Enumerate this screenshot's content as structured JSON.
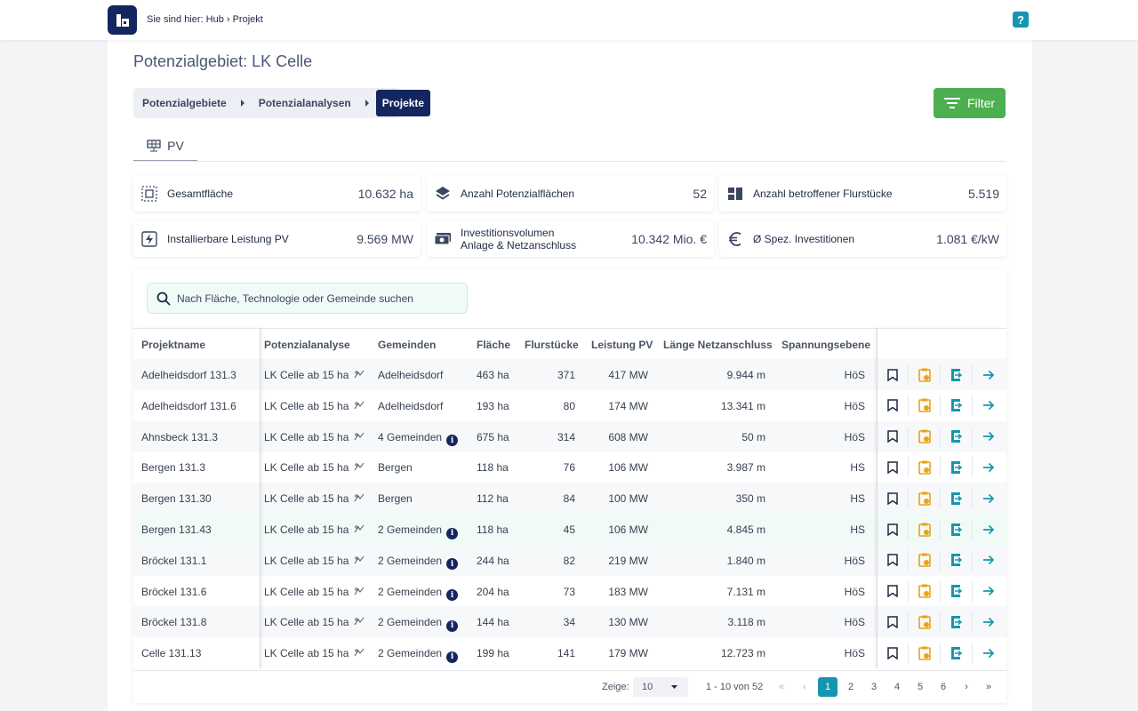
{
  "topbar": {
    "breadcrumb": "Sie sind hier: Hub › Projekt",
    "help": "?"
  },
  "page": {
    "title": "Potenzialgebiet:  LK Celle"
  },
  "breadcrumb": [
    "Potenzialgebiete",
    "Potenzialanalysen",
    "Projekte"
  ],
  "filter_label": "Filter",
  "tab": "PV",
  "stats": [
    {
      "label": "Gesamtfläche",
      "value": "10.632 ha",
      "icon": "area-select-icon"
    },
    {
      "label": "Anzahl Potenzialflächen",
      "value": "52",
      "icon": "layers-icon"
    },
    {
      "label": "Anzahl betroffener Flurstücke",
      "value": "5.519",
      "icon": "grid-blocks-icon"
    },
    {
      "label": "Installierbare Leistung PV",
      "value": "9.569 MW",
      "icon": "lightning-icon"
    },
    {
      "label": "Investitionsvolumen\nAnlage & Netzanschluss",
      "value": "10.342 Mio. €",
      "icon": "money-icon"
    },
    {
      "label": "Ø Spez. Investitionen",
      "value": "1.081 €/kW",
      "icon": "euro-icon"
    }
  ],
  "search": {
    "placeholder": "Nach Fläche, Technologie oder Gemeinde suchen"
  },
  "columns": [
    "Projektname",
    "Potenzialanalyse",
    "Gemeinden",
    "Fläche",
    "Flurstücke",
    "Leistung PV",
    "Länge Netzanschluss",
    "Spannungsebene"
  ],
  "rows": [
    {
      "name": "Adelheidsdorf 131.3",
      "analyse": "LK Celle ab 15 ha",
      "gemeinden": "Adelheidsdorf",
      "info": false,
      "flaeche": "463 ha",
      "flur": "371",
      "leistung": "417 MW",
      "laenge": "9.944 m",
      "spannung": "HöS"
    },
    {
      "name": "Adelheidsdorf 131.6",
      "analyse": "LK Celle ab 15 ha",
      "gemeinden": "Adelheidsdorf",
      "info": false,
      "flaeche": "193 ha",
      "flur": "80",
      "leistung": "174 MW",
      "laenge": "13.341 m",
      "spannung": "HöS"
    },
    {
      "name": "Ahnsbeck 131.3",
      "analyse": "LK Celle ab 15 ha",
      "gemeinden": "4 Gemeinden",
      "info": true,
      "flaeche": "675 ha",
      "flur": "314",
      "leistung": "608 MW",
      "laenge": "50 m",
      "spannung": "HöS"
    },
    {
      "name": "Bergen 131.3",
      "analyse": "LK Celle ab 15 ha",
      "gemeinden": "Bergen",
      "info": false,
      "flaeche": "118 ha",
      "flur": "76",
      "leistung": "106 MW",
      "laenge": "3.987 m",
      "spannung": "HS"
    },
    {
      "name": "Bergen 131.30",
      "analyse": "LK Celle ab 15 ha",
      "gemeinden": "Bergen",
      "info": false,
      "flaeche": "112 ha",
      "flur": "84",
      "leistung": "100 MW",
      "laenge": "350 m",
      "spannung": "HS"
    },
    {
      "name": "Bergen 131.43",
      "analyse": "LK Celle ab 15 ha",
      "gemeinden": "2 Gemeinden",
      "info": true,
      "flaeche": "118 ha",
      "flur": "45",
      "leistung": "106 MW",
      "laenge": "4.845 m",
      "spannung": "HS"
    },
    {
      "name": "Bröckel 131.1",
      "analyse": "LK Celle ab 15 ha",
      "gemeinden": "2 Gemeinden",
      "info": true,
      "flaeche": "244 ha",
      "flur": "82",
      "leistung": "219 MW",
      "laenge": "1.840 m",
      "spannung": "HöS"
    },
    {
      "name": "Bröckel 131.6",
      "analyse": "LK Celle ab 15 ha",
      "gemeinden": "2 Gemeinden",
      "info": true,
      "flaeche": "204 ha",
      "flur": "73",
      "leistung": "183 MW",
      "laenge": "7.131 m",
      "spannung": "HöS"
    },
    {
      "name": "Bröckel 131.8",
      "analyse": "LK Celle ab 15 ha",
      "gemeinden": "2 Gemeinden",
      "info": true,
      "flaeche": "144 ha",
      "flur": "34",
      "leistung": "130 MW",
      "laenge": "3.118 m",
      "spannung": "HöS"
    },
    {
      "name": "Celle 131.13",
      "analyse": "LK Celle ab 15 ha",
      "gemeinden": "2 Gemeinden",
      "info": true,
      "flaeche": "199 ha",
      "flur": "141",
      "leistung": "179 MW",
      "laenge": "12.723 m",
      "spannung": "HöS"
    }
  ],
  "pager": {
    "label": "Zeige:",
    "per_page": "10",
    "range": "1 - 10 von 52",
    "pages": [
      "1",
      "2",
      "3",
      "4",
      "5",
      "6"
    ],
    "current": "1"
  },
  "colors": {
    "brand": "#132660",
    "accent": "#1596b0",
    "filter": "#4caf50",
    "clipboard": "#e8a317"
  }
}
